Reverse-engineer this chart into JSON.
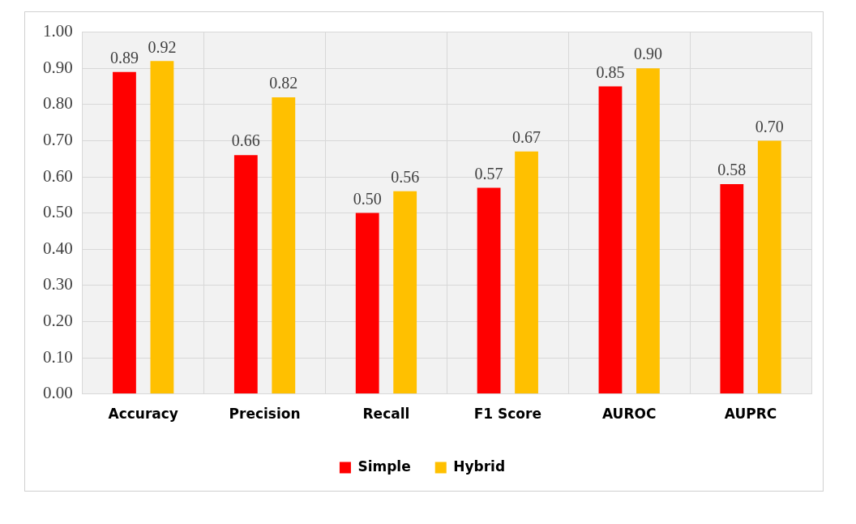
{
  "chart_data": {
    "type": "bar",
    "categories": [
      "Accuracy",
      "Precision",
      "Recall",
      "F1 Score",
      "AUROC",
      "AUPRC"
    ],
    "series": [
      {
        "name": "Simple",
        "color": "#ff0000",
        "values": [
          0.89,
          0.66,
          0.5,
          0.57,
          0.85,
          0.58
        ]
      },
      {
        "name": "Hybrid",
        "color": "#ffc000",
        "values": [
          0.92,
          0.82,
          0.56,
          0.67,
          0.9,
          0.7
        ]
      }
    ],
    "ylim": [
      0,
      1
    ],
    "yticks": [
      {
        "value": 0,
        "label": "0.00"
      },
      {
        "value": 0.1,
        "label": "0.10"
      },
      {
        "value": 0.2,
        "label": "0.20"
      },
      {
        "value": 0.3,
        "label": "0.30"
      },
      {
        "value": 0.4,
        "label": "0.40"
      },
      {
        "value": 0.5,
        "label": "0.50"
      },
      {
        "value": 0.6,
        "label": "0.60"
      },
      {
        "value": 0.7,
        "label": "0.70"
      },
      {
        "value": 0.8,
        "label": "0.80"
      },
      {
        "value": 0.9,
        "label": "0.90"
      },
      {
        "value": 1,
        "label": "1.00"
      }
    ],
    "value_labels": [
      [
        "0.89",
        "0.66",
        "0.50",
        "0.57",
        "0.85",
        "0.58"
      ],
      [
        "0.92",
        "0.82",
        "0.56",
        "0.67",
        "0.90",
        "0.70"
      ]
    ],
    "grid": true,
    "legend": "bottom"
  }
}
